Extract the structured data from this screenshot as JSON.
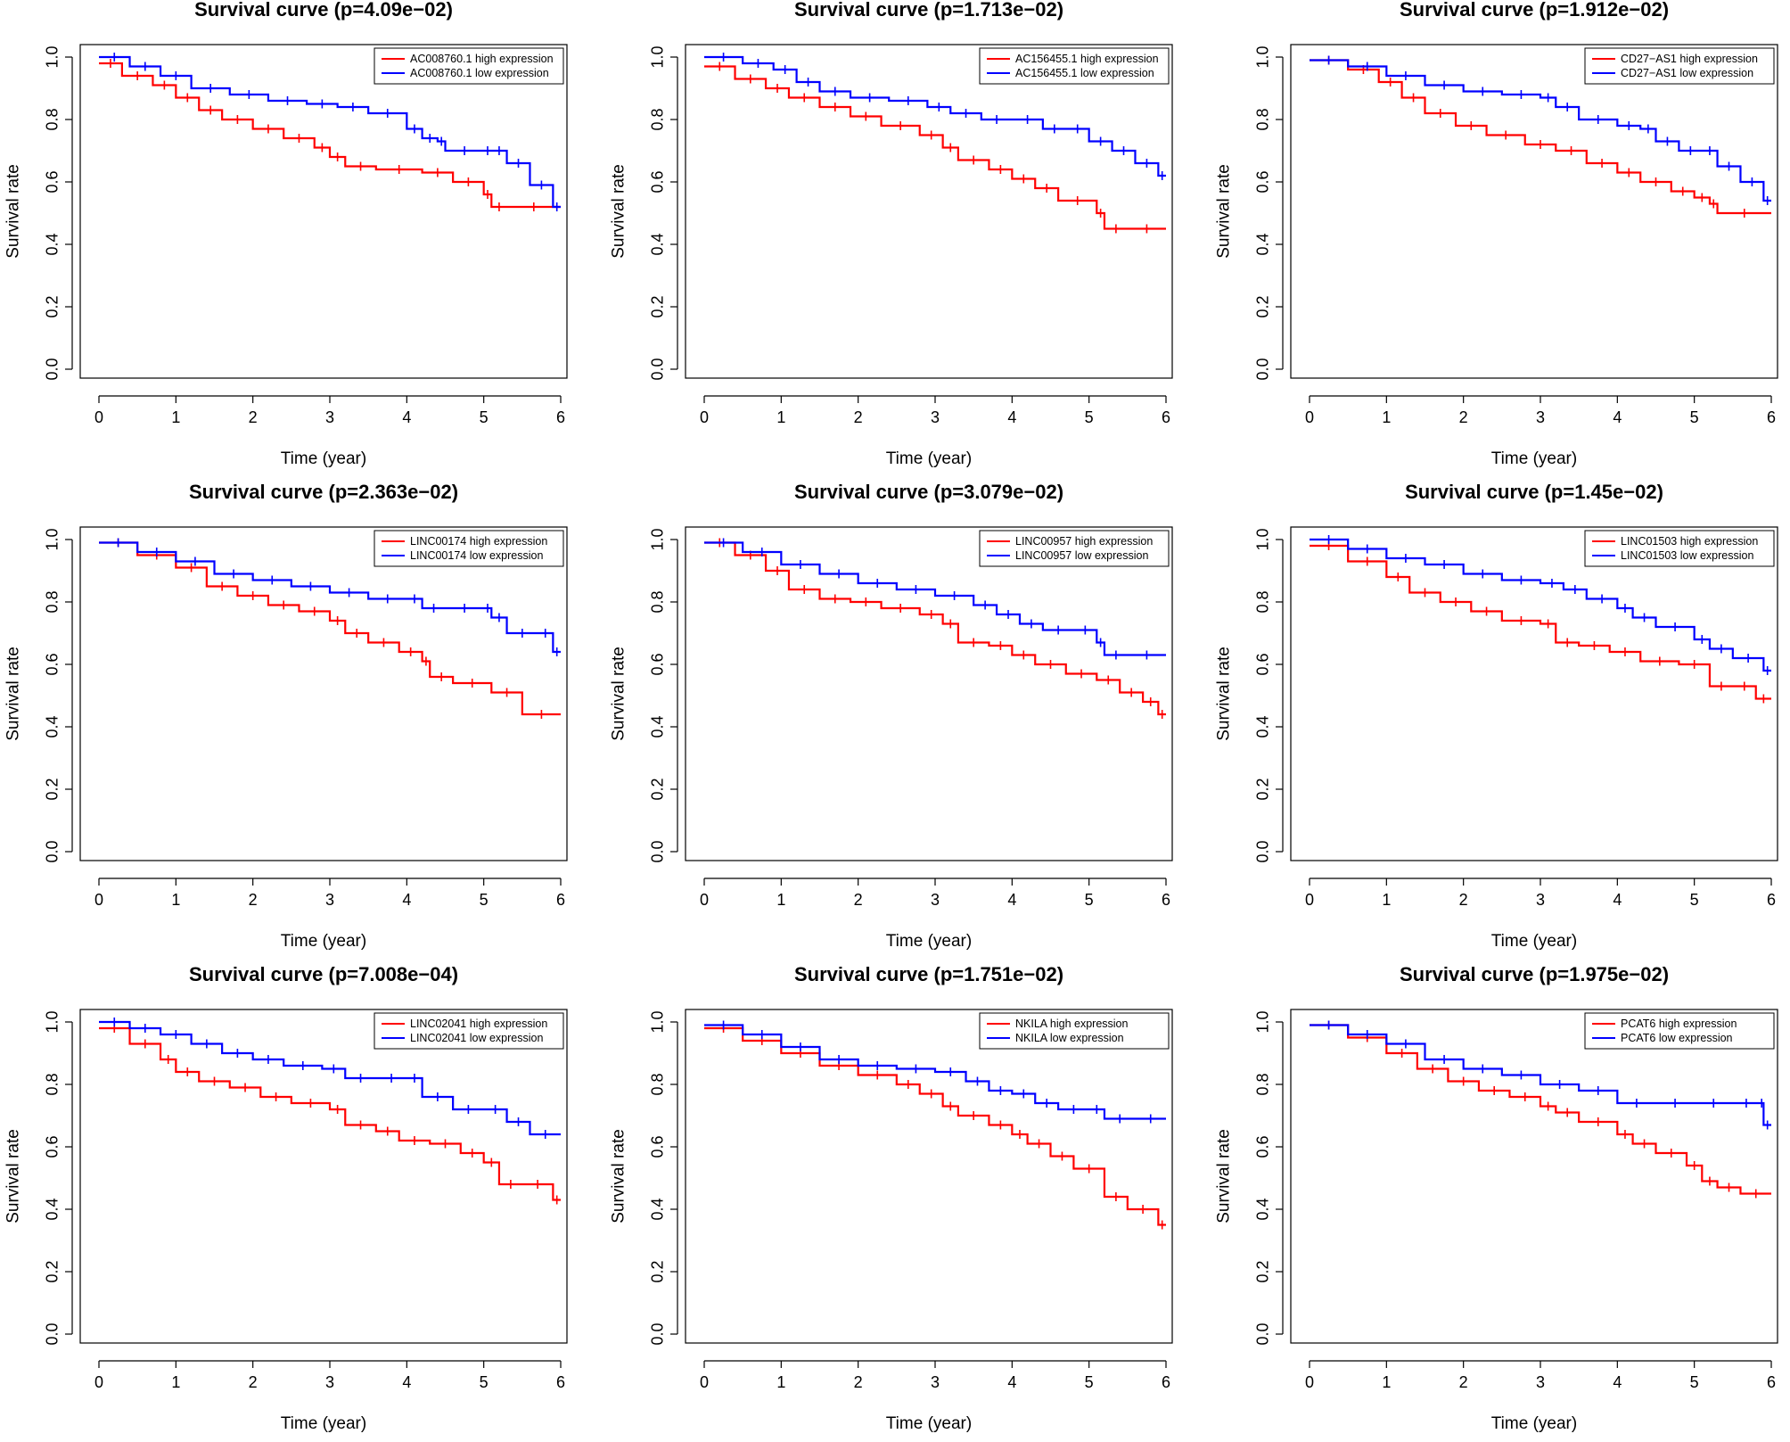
{
  "colors": {
    "high": "#ff0000",
    "low": "#0000ff",
    "axis": "#000000"
  },
  "chart_data": [
    {
      "type": "line",
      "title": "Survival curve (p=4.09e−02)",
      "xlabel": "Time (year)",
      "ylabel": "Survival rate",
      "xlim": [
        0,
        6
      ],
      "ylim": [
        0,
        1
      ],
      "xticks": [
        "0",
        "1",
        "2",
        "3",
        "4",
        "5",
        "6"
      ],
      "yticks": [
        "0.0",
        "0.2",
        "0.4",
        "0.6",
        "0.8",
        "1.0"
      ],
      "legend_position": "top-right",
      "series": [
        {
          "name": "AC008760.1 high expression",
          "color": "high",
          "x": [
            0,
            0.3,
            0.7,
            1.0,
            1.3,
            1.6,
            2.0,
            2.4,
            2.8,
            3.0,
            3.2,
            3.6,
            4.2,
            4.6,
            5.0,
            5.1,
            5.3,
            6.0
          ],
          "y": [
            0.98,
            0.94,
            0.91,
            0.87,
            0.83,
            0.8,
            0.77,
            0.74,
            0.71,
            0.68,
            0.65,
            0.64,
            0.63,
            0.6,
            0.56,
            0.52,
            0.52,
            0.52
          ]
        },
        {
          "name": "AC008760.1 low expression",
          "color": "low",
          "x": [
            0,
            0.4,
            0.8,
            1.2,
            1.7,
            2.2,
            2.7,
            3.1,
            3.5,
            4.0,
            4.2,
            4.4,
            4.5,
            5.0,
            5.1,
            5.3,
            5.6,
            5.9,
            6.0
          ],
          "y": [
            1.0,
            0.97,
            0.94,
            0.9,
            0.88,
            0.86,
            0.85,
            0.84,
            0.82,
            0.77,
            0.74,
            0.73,
            0.7,
            0.7,
            0.7,
            0.66,
            0.59,
            0.52,
            0.52
          ]
        }
      ]
    },
    {
      "type": "line",
      "title": "Survival curve (p=1.713e−02)",
      "xlabel": "Time (year)",
      "ylabel": "Survival rate",
      "xlim": [
        0,
        6
      ],
      "ylim": [
        0,
        1
      ],
      "xticks": [
        "0",
        "1",
        "2",
        "3",
        "4",
        "5",
        "6"
      ],
      "yticks": [
        "0.0",
        "0.2",
        "0.4",
        "0.6",
        "0.8",
        "1.0"
      ],
      "legend_position": "top-right",
      "series": [
        {
          "name": "AC156455.1 high expression",
          "color": "high",
          "x": [
            0,
            0.4,
            0.8,
            1.1,
            1.5,
            1.9,
            2.3,
            2.8,
            3.1,
            3.3,
            3.7,
            4.0,
            4.3,
            4.6,
            5.1,
            5.2,
            5.5,
            6.0
          ],
          "y": [
            0.97,
            0.93,
            0.9,
            0.87,
            0.84,
            0.81,
            0.78,
            0.75,
            0.71,
            0.67,
            0.64,
            0.61,
            0.58,
            0.54,
            0.5,
            0.45,
            0.45,
            0.45
          ]
        },
        {
          "name": "AC156455.1 low expression",
          "color": "low",
          "x": [
            0,
            0.5,
            0.9,
            1.2,
            1.5,
            1.9,
            2.4,
            2.9,
            3.2,
            3.6,
            4.0,
            4.4,
            4.7,
            5.0,
            5.3,
            5.6,
            5.9,
            6.0
          ],
          "y": [
            1.0,
            0.98,
            0.96,
            0.92,
            0.89,
            0.87,
            0.86,
            0.84,
            0.82,
            0.8,
            0.8,
            0.77,
            0.77,
            0.73,
            0.7,
            0.66,
            0.62,
            0.62
          ]
        }
      ]
    },
    {
      "type": "line",
      "title": "Survival curve (p=1.912e−02)",
      "xlabel": "Time (year)",
      "ylabel": "Survival rate",
      "xlim": [
        0,
        6
      ],
      "ylim": [
        0,
        1
      ],
      "xticks": [
        "0",
        "1",
        "2",
        "3",
        "4",
        "5",
        "6"
      ],
      "yticks": [
        "0.0",
        "0.2",
        "0.4",
        "0.6",
        "0.8",
        "1.0"
      ],
      "legend_position": "top-right",
      "series": [
        {
          "name": "CD27−AS1 high expression",
          "color": "high",
          "x": [
            0,
            0.5,
            0.9,
            1.2,
            1.5,
            1.9,
            2.3,
            2.8,
            3.2,
            3.6,
            4.0,
            4.3,
            4.7,
            5.0,
            5.2,
            5.3,
            6.0
          ],
          "y": [
            0.99,
            0.96,
            0.92,
            0.87,
            0.82,
            0.78,
            0.75,
            0.72,
            0.7,
            0.66,
            0.63,
            0.6,
            0.57,
            0.55,
            0.53,
            0.5,
            0.5
          ]
        },
        {
          "name": "CD27−AS1 low expression",
          "color": "low",
          "x": [
            0,
            0.5,
            1.0,
            1.5,
            2.0,
            2.5,
            3.0,
            3.2,
            3.5,
            4.0,
            4.3,
            4.5,
            4.8,
            5.1,
            5.3,
            5.6,
            5.9,
            6.0
          ],
          "y": [
            0.99,
            0.97,
            0.94,
            0.91,
            0.89,
            0.88,
            0.87,
            0.84,
            0.8,
            0.78,
            0.77,
            0.73,
            0.7,
            0.7,
            0.65,
            0.6,
            0.54,
            0.54
          ]
        }
      ]
    },
    {
      "type": "line",
      "title": "Survival curve (p=2.363e−02)",
      "xlabel": "Time (year)",
      "ylabel": "Survival rate",
      "xlim": [
        0,
        6
      ],
      "ylim": [
        0,
        1
      ],
      "xticks": [
        "0",
        "1",
        "2",
        "3",
        "4",
        "5",
        "6"
      ],
      "yticks": [
        "0.0",
        "0.2",
        "0.4",
        "0.6",
        "0.8",
        "1.0"
      ],
      "legend_position": "top-right",
      "series": [
        {
          "name": "LINC00174 high expression",
          "color": "high",
          "x": [
            0,
            0.5,
            1.0,
            1.4,
            1.8,
            2.2,
            2.6,
            3.0,
            3.2,
            3.5,
            3.9,
            4.2,
            4.3,
            4.6,
            5.1,
            5.5,
            6.0
          ],
          "y": [
            0.99,
            0.95,
            0.91,
            0.85,
            0.82,
            0.79,
            0.77,
            0.74,
            0.7,
            0.67,
            0.64,
            0.61,
            0.56,
            0.54,
            0.51,
            0.44,
            0.44
          ]
        },
        {
          "name": "LINC00174 low expression",
          "color": "low",
          "x": [
            0,
            0.5,
            1.0,
            1.5,
            2.0,
            2.5,
            3.0,
            3.5,
            4.0,
            4.2,
            4.5,
            5.0,
            5.1,
            5.3,
            5.7,
            5.9,
            6.0
          ],
          "y": [
            0.99,
            0.96,
            0.93,
            0.89,
            0.87,
            0.85,
            0.83,
            0.81,
            0.81,
            0.78,
            0.78,
            0.78,
            0.75,
            0.7,
            0.7,
            0.64,
            0.64
          ]
        }
      ]
    },
    {
      "type": "line",
      "title": "Survival curve (p=3.079e−02)",
      "xlabel": "Time (year)",
      "ylabel": "Survival rate",
      "xlim": [
        0,
        6
      ],
      "ylim": [
        0,
        1
      ],
      "xticks": [
        "0",
        "1",
        "2",
        "3",
        "4",
        "5",
        "6"
      ],
      "yticks": [
        "0.0",
        "0.2",
        "0.4",
        "0.6",
        "0.8",
        "1.0"
      ],
      "legend_position": "top-right",
      "series": [
        {
          "name": "LINC00957 high expression",
          "color": "high",
          "x": [
            0,
            0.4,
            0.8,
            1.1,
            1.5,
            1.9,
            2.3,
            2.8,
            3.1,
            3.3,
            3.7,
            4.0,
            4.3,
            4.7,
            5.1,
            5.4,
            5.7,
            5.9,
            6.0
          ],
          "y": [
            0.99,
            0.95,
            0.9,
            0.84,
            0.81,
            0.8,
            0.78,
            0.76,
            0.73,
            0.67,
            0.66,
            0.63,
            0.6,
            0.57,
            0.55,
            0.51,
            0.48,
            0.44,
            0.44
          ]
        },
        {
          "name": "LINC00957 low expression",
          "color": "low",
          "x": [
            0,
            0.5,
            1.0,
            1.5,
            2.0,
            2.5,
            3.0,
            3.5,
            3.8,
            4.1,
            4.4,
            4.8,
            5.1,
            5.2,
            5.5,
            6.0
          ],
          "y": [
            0.99,
            0.96,
            0.92,
            0.89,
            0.86,
            0.84,
            0.82,
            0.79,
            0.76,
            0.73,
            0.71,
            0.71,
            0.67,
            0.63,
            0.63,
            0.63
          ]
        }
      ]
    },
    {
      "type": "line",
      "title": "Survival curve (p=1.45e−02)",
      "xlabel": "Time (year)",
      "ylabel": "Survival rate",
      "xlim": [
        0,
        6
      ],
      "ylim": [
        0,
        1
      ],
      "xticks": [
        "0",
        "1",
        "2",
        "3",
        "4",
        "5",
        "6"
      ],
      "yticks": [
        "0.0",
        "0.2",
        "0.4",
        "0.6",
        "0.8",
        "1.0"
      ],
      "legend_position": "top-right",
      "series": [
        {
          "name": "LINC01503 high expression",
          "color": "high",
          "x": [
            0,
            0.5,
            1.0,
            1.3,
            1.7,
            2.1,
            2.5,
            3.0,
            3.2,
            3.5,
            3.9,
            4.3,
            4.8,
            5.2,
            5.5,
            5.8,
            6.0
          ],
          "y": [
            0.98,
            0.93,
            0.88,
            0.83,
            0.8,
            0.77,
            0.74,
            0.73,
            0.67,
            0.66,
            0.64,
            0.61,
            0.6,
            0.53,
            0.53,
            0.49,
            0.49
          ]
        },
        {
          "name": "LINC01503 low expression",
          "color": "low",
          "x": [
            0,
            0.5,
            1.0,
            1.5,
            2.0,
            2.5,
            3.0,
            3.3,
            3.6,
            4.0,
            4.2,
            4.5,
            5.0,
            5.2,
            5.5,
            5.9,
            6.0
          ],
          "y": [
            1.0,
            0.97,
            0.94,
            0.92,
            0.89,
            0.87,
            0.86,
            0.84,
            0.81,
            0.78,
            0.75,
            0.72,
            0.68,
            0.65,
            0.62,
            0.58,
            0.58
          ]
        }
      ]
    },
    {
      "type": "line",
      "title": "Survival curve (p=7.008e−04)",
      "xlabel": "Time (year)",
      "ylabel": "Survival rate",
      "xlim": [
        0,
        6
      ],
      "ylim": [
        0,
        1
      ],
      "xticks": [
        "0",
        "1",
        "2",
        "3",
        "4",
        "5",
        "6"
      ],
      "yticks": [
        "0.0",
        "0.2",
        "0.4",
        "0.6",
        "0.8",
        "1.0"
      ],
      "legend_position": "top-right",
      "series": [
        {
          "name": "LINC02041 high expression",
          "color": "high",
          "x": [
            0,
            0.4,
            0.8,
            1.0,
            1.3,
            1.7,
            2.1,
            2.5,
            3.0,
            3.2,
            3.6,
            3.9,
            4.3,
            4.7,
            5.0,
            5.2,
            5.5,
            5.9,
            6.0
          ],
          "y": [
            0.98,
            0.93,
            0.88,
            0.84,
            0.81,
            0.79,
            0.76,
            0.74,
            0.72,
            0.67,
            0.65,
            0.62,
            0.61,
            0.58,
            0.55,
            0.48,
            0.48,
            0.43,
            0.43
          ]
        },
        {
          "name": "LINC02041 low expression",
          "color": "low",
          "x": [
            0,
            0.4,
            0.8,
            1.2,
            1.6,
            2.0,
            2.4,
            2.9,
            3.2,
            3.6,
            4.0,
            4.2,
            4.6,
            5.0,
            5.3,
            5.6,
            6.0
          ],
          "y": [
            1.0,
            0.98,
            0.96,
            0.93,
            0.9,
            0.88,
            0.86,
            0.85,
            0.82,
            0.82,
            0.82,
            0.76,
            0.72,
            0.72,
            0.68,
            0.64,
            0.64
          ]
        }
      ]
    },
    {
      "type": "line",
      "title": "Survival curve (p=1.751e−02)",
      "xlabel": "Time (year)",
      "ylabel": "Survival rate",
      "xlim": [
        0,
        6
      ],
      "ylim": [
        0,
        1
      ],
      "xticks": [
        "0",
        "1",
        "2",
        "3",
        "4",
        "5",
        "6"
      ],
      "yticks": [
        "0.0",
        "0.2",
        "0.4",
        "0.6",
        "0.8",
        "1.0"
      ],
      "legend_position": "top-right",
      "series": [
        {
          "name": "NKILA high expression",
          "color": "high",
          "x": [
            0,
            0.5,
            1.0,
            1.5,
            2.0,
            2.5,
            2.8,
            3.1,
            3.3,
            3.7,
            4.0,
            4.2,
            4.5,
            4.8,
            5.2,
            5.5,
            5.9,
            6.0
          ],
          "y": [
            0.98,
            0.94,
            0.9,
            0.86,
            0.83,
            0.8,
            0.77,
            0.73,
            0.7,
            0.67,
            0.64,
            0.61,
            0.57,
            0.53,
            0.44,
            0.4,
            0.35,
            0.35
          ]
        },
        {
          "name": "NKILA low expression",
          "color": "low",
          "x": [
            0,
            0.5,
            1.0,
            1.5,
            2.0,
            2.5,
            3.0,
            3.4,
            3.7,
            4.0,
            4.3,
            4.6,
            5.0,
            5.2,
            5.6,
            6.0
          ],
          "y": [
            0.99,
            0.96,
            0.92,
            0.88,
            0.86,
            0.85,
            0.84,
            0.81,
            0.78,
            0.77,
            0.74,
            0.72,
            0.72,
            0.69,
            0.69,
            0.69
          ]
        }
      ]
    },
    {
      "type": "line",
      "title": "Survival curve (p=1.975e−02)",
      "xlabel": "Time (year)",
      "ylabel": "Survival rate",
      "xlim": [
        0,
        6
      ],
      "ylim": [
        0,
        1
      ],
      "xticks": [
        "0",
        "1",
        "2",
        "3",
        "4",
        "5",
        "6"
      ],
      "yticks": [
        "0.0",
        "0.2",
        "0.4",
        "0.6",
        "0.8",
        "1.0"
      ],
      "legend_position": "top-right",
      "series": [
        {
          "name": "PCAT6 high expression",
          "color": "high",
          "x": [
            0,
            0.5,
            1.0,
            1.4,
            1.8,
            2.2,
            2.6,
            3.0,
            3.2,
            3.5,
            4.0,
            4.2,
            4.5,
            4.9,
            5.1,
            5.3,
            5.6,
            6.0
          ],
          "y": [
            0.99,
            0.95,
            0.9,
            0.85,
            0.81,
            0.78,
            0.76,
            0.73,
            0.71,
            0.68,
            0.64,
            0.61,
            0.58,
            0.54,
            0.49,
            0.47,
            0.45,
            0.45
          ]
        },
        {
          "name": "PCAT6 low expression",
          "color": "low",
          "x": [
            0,
            0.5,
            1.0,
            1.5,
            2.0,
            2.5,
            3.0,
            3.5,
            4.0,
            4.5,
            5.0,
            5.5,
            5.85,
            5.9,
            6.0
          ],
          "y": [
            0.99,
            0.96,
            0.93,
            0.88,
            0.85,
            0.83,
            0.8,
            0.78,
            0.74,
            0.74,
            0.74,
            0.74,
            0.74,
            0.67,
            0.67
          ]
        }
      ]
    }
  ]
}
